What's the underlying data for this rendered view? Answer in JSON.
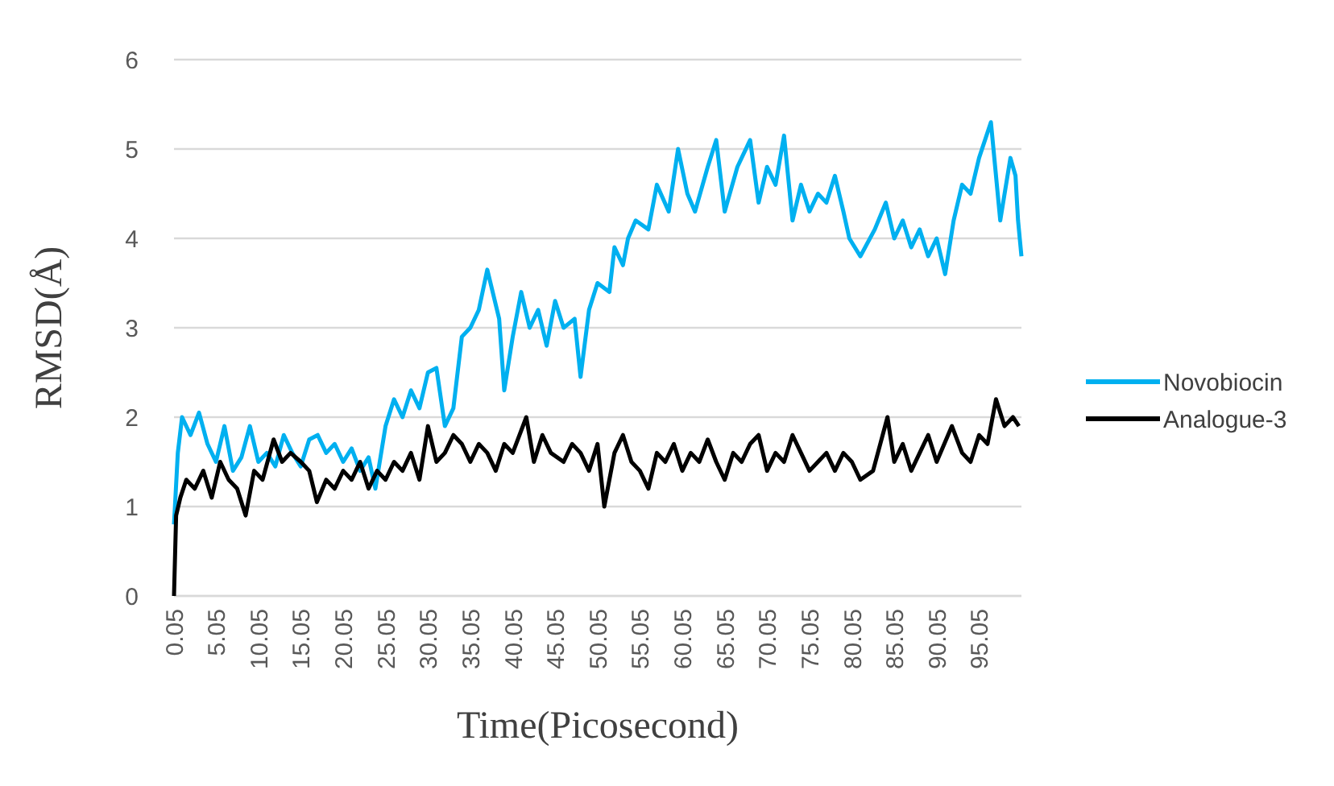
{
  "chart_data": {
    "type": "line",
    "xlabel": "Time(Picosecond)",
    "ylabel": "RMSD(Å)",
    "xlim": [
      0.05,
      100
    ],
    "xticks": [
      0.05,
      5.05,
      10.05,
      15.05,
      20.05,
      25.05,
      30.05,
      35.05,
      40.05,
      45.05,
      50.05,
      55.05,
      60.05,
      65.05,
      70.05,
      75.05,
      80.05,
      85.05,
      90.05,
      95.05
    ],
    "ylim": [
      0,
      6
    ],
    "yticks": [
      0,
      1,
      2,
      3,
      4,
      5,
      6
    ],
    "grid": "y",
    "legend": "right",
    "marker": "none",
    "line_style": "solid",
    "series": [
      {
        "name": "Novobiocin",
        "color": "#00b0f0",
        "x": [
          0.05,
          0.5,
          1,
          2,
          3,
          4,
          5,
          6,
          7,
          8,
          9,
          10,
          11,
          12,
          13,
          14,
          15,
          16,
          17,
          18,
          19,
          20,
          21,
          22,
          23,
          23.8,
          25,
          26,
          27,
          28,
          29,
          30,
          31,
          32,
          33,
          34,
          35,
          36,
          37,
          38.4,
          39,
          40,
          41,
          42,
          43,
          44,
          45,
          46,
          47.3,
          48,
          49,
          50,
          51.4,
          52,
          53,
          53.6,
          54.5,
          56,
          57,
          58.4,
          59.5,
          60.6,
          61.5,
          63,
          64,
          65,
          66.5,
          68,
          69,
          70,
          71,
          72,
          73,
          74,
          75,
          76,
          77,
          78,
          79,
          79.7,
          81,
          82.7,
          84,
          85,
          86,
          87,
          88,
          89,
          90,
          91,
          92,
          93,
          94,
          95,
          96.4,
          97.5,
          98.7,
          99.3,
          99.6,
          100
        ],
        "values": [
          0.8,
          1.6,
          2.0,
          1.8,
          2.05,
          1.7,
          1.5,
          1.9,
          1.4,
          1.55,
          1.9,
          1.5,
          1.6,
          1.45,
          1.8,
          1.6,
          1.45,
          1.75,
          1.8,
          1.6,
          1.7,
          1.5,
          1.65,
          1.4,
          1.55,
          1.2,
          1.9,
          2.2,
          2.0,
          2.3,
          2.1,
          2.5,
          2.55,
          1.9,
          2.1,
          2.9,
          3.0,
          3.2,
          3.65,
          3.1,
          2.3,
          2.9,
          3.4,
          3.0,
          3.2,
          2.8,
          3.3,
          3.0,
          3.1,
          2.45,
          3.2,
          3.5,
          3.4,
          3.9,
          3.7,
          4.0,
          4.2,
          4.1,
          4.6,
          4.3,
          5.0,
          4.5,
          4.3,
          4.8,
          5.1,
          4.3,
          4.8,
          5.1,
          4.4,
          4.8,
          4.6,
          5.15,
          4.2,
          4.6,
          4.3,
          4.5,
          4.4,
          4.7,
          4.3,
          4.0,
          3.8,
          4.1,
          4.4,
          4.0,
          4.2,
          3.9,
          4.1,
          3.8,
          4.0,
          3.6,
          4.2,
          4.6,
          4.5,
          4.9,
          5.3,
          4.2,
          4.9,
          4.7,
          4.2,
          3.8
        ]
      },
      {
        "name": "Analogue-3",
        "color": "#000000",
        "x": [
          0.05,
          0.3,
          0.8,
          1.5,
          2.5,
          3.5,
          4.5,
          5.5,
          6.5,
          7.5,
          8.5,
          9.5,
          10.5,
          11.8,
          12.8,
          13.8,
          15,
          16,
          16.9,
          18,
          19,
          20,
          21,
          22,
          23,
          24,
          25,
          26,
          27,
          28,
          29,
          30,
          31,
          32,
          33,
          34,
          35,
          36,
          37,
          38,
          39,
          40,
          41.6,
          42.5,
          43.5,
          44.5,
          46,
          47,
          48,
          49,
          50,
          50.8,
          52,
          53,
          54,
          55,
          56,
          57,
          58,
          59,
          60,
          61,
          62,
          63,
          64,
          65,
          66,
          67,
          68,
          69,
          70,
          71,
          72,
          73,
          74,
          75,
          76,
          77,
          78,
          79,
          80,
          81,
          82.5,
          84.2,
          85,
          86,
          87,
          88,
          89,
          90,
          91.8,
          93,
          94,
          95,
          96,
          97,
          98,
          99,
          99.7
        ],
        "values": [
          0,
          0.9,
          1.1,
          1.3,
          1.2,
          1.4,
          1.1,
          1.5,
          1.3,
          1.2,
          0.9,
          1.4,
          1.3,
          1.75,
          1.5,
          1.6,
          1.5,
          1.4,
          1.05,
          1.3,
          1.2,
          1.4,
          1.3,
          1.5,
          1.2,
          1.4,
          1.3,
          1.5,
          1.4,
          1.6,
          1.3,
          1.9,
          1.5,
          1.6,
          1.8,
          1.7,
          1.5,
          1.7,
          1.6,
          1.4,
          1.7,
          1.6,
          2.0,
          1.5,
          1.8,
          1.6,
          1.5,
          1.7,
          1.6,
          1.4,
          1.7,
          1.0,
          1.6,
          1.8,
          1.5,
          1.4,
          1.2,
          1.6,
          1.5,
          1.7,
          1.4,
          1.6,
          1.5,
          1.75,
          1.5,
          1.3,
          1.6,
          1.5,
          1.7,
          1.8,
          1.4,
          1.6,
          1.5,
          1.8,
          1.6,
          1.4,
          1.5,
          1.6,
          1.4,
          1.6,
          1.5,
          1.3,
          1.4,
          2.0,
          1.5,
          1.7,
          1.4,
          1.6,
          1.8,
          1.5,
          1.9,
          1.6,
          1.5,
          1.8,
          1.7,
          2.2,
          1.9,
          2.0,
          1.9
        ]
      }
    ]
  }
}
